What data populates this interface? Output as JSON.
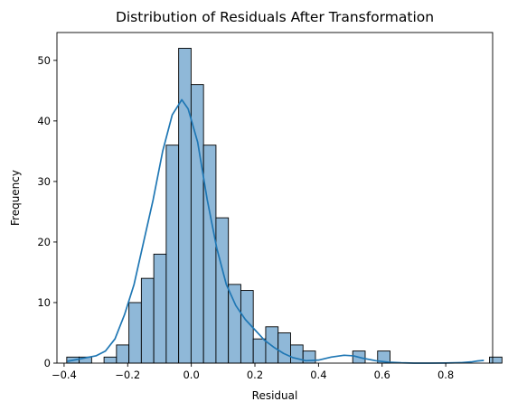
{
  "chart_data": {
    "type": "histogram",
    "title": "Distribution of Residuals After Transformation",
    "xlabel": "Residual",
    "ylabel": "Frequency",
    "xlim": [
      -0.4225,
      0.9475
    ],
    "ylim": [
      0,
      54.6
    ],
    "x_ticks": [
      -0.4,
      -0.2,
      0.0,
      0.2,
      0.4,
      0.6,
      0.8
    ],
    "x_tick_labels": [
      "−0.4",
      "−0.2",
      "0.0",
      "0.2",
      "0.4",
      "0.6",
      "0.8"
    ],
    "y_ticks": [
      0,
      10,
      20,
      30,
      40,
      50
    ],
    "y_tick_labels": [
      "0",
      "10",
      "20",
      "30",
      "40",
      "50"
    ],
    "bin_start": -0.3917,
    "bin_width": 0.0391,
    "counts": [
      1,
      1,
      0,
      1,
      3,
      10,
      14,
      18,
      36,
      52,
      46,
      36,
      24,
      13,
      12,
      4,
      6,
      5,
      3,
      2,
      0,
      0,
      0,
      2,
      0,
      2,
      0,
      0,
      0,
      0,
      0,
      0,
      0,
      0,
      1
    ],
    "kde": {
      "x": [
        -0.39,
        -0.36,
        -0.33,
        -0.3,
        -0.27,
        -0.24,
        -0.21,
        -0.18,
        -0.15,
        -0.12,
        -0.09,
        -0.06,
        -0.03,
        -0.01,
        0.02,
        0.05,
        0.08,
        0.11,
        0.14,
        0.17,
        0.2,
        0.23,
        0.26,
        0.29,
        0.32,
        0.36,
        0.4,
        0.44,
        0.48,
        0.51,
        0.54,
        0.58,
        0.62,
        0.66,
        0.7,
        0.75,
        0.8,
        0.85,
        0.88,
        0.9,
        0.92
      ],
      "y": [
        0.3,
        0.6,
        0.9,
        1.2,
        2.0,
        4.0,
        8.0,
        13.0,
        20.0,
        27.0,
        35.0,
        41.0,
        43.5,
        42.0,
        36.5,
        27.0,
        19.0,
        13.0,
        9.5,
        7.2,
        5.5,
        3.8,
        2.6,
        1.6,
        0.9,
        0.4,
        0.5,
        1.0,
        1.3,
        1.2,
        0.8,
        0.4,
        0.15,
        0.05,
        0.0,
        0.0,
        0.02,
        0.08,
        0.2,
        0.35,
        0.45
      ]
    },
    "colors": {
      "bar_fill": "#8fb8d8",
      "bar_edge": "#000000",
      "kde_line": "#1f77b4"
    }
  }
}
